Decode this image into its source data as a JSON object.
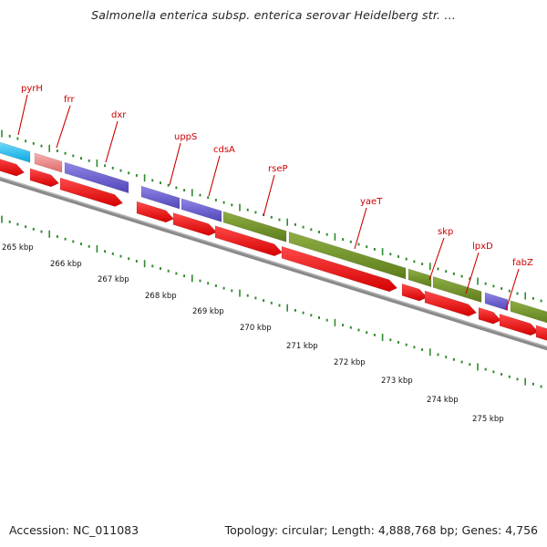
{
  "title": "Salmonella enterica subsp. enterica serovar Heidelberg str. ...",
  "accession": "Accession: NC_011083",
  "summary": "Topology: circular; Length: 4,888,768 bp; Genes: 4,756",
  "colors": {
    "backbone": "#7a7a7a",
    "gene_label": "#cc0000",
    "leader": "#cc0000",
    "tick_major": "#2e8b2e",
    "tick_minor": "#2e8b2e",
    "cds_arrow": "#ee0000",
    "feature_cyan": "#1ec0f0",
    "feature_pink": "#f08080",
    "feature_purple": "#6a5acd",
    "feature_olive": "#6b8e23"
  },
  "genes": [
    {
      "name": "pyrH"
    },
    {
      "name": "frr"
    },
    {
      "name": "dxr"
    },
    {
      "name": "uppS"
    },
    {
      "name": "cdsA"
    },
    {
      "name": "rseP"
    },
    {
      "name": "yaeT"
    },
    {
      "name": "skp"
    },
    {
      "name": "lpxD"
    },
    {
      "name": "fabZ"
    }
  ],
  "features": [
    {
      "type": "cyan"
    },
    {
      "type": "pink"
    },
    {
      "type": "purple"
    },
    {
      "type": "purple"
    },
    {
      "type": "purple"
    },
    {
      "type": "olive"
    },
    {
      "type": "olive"
    },
    {
      "type": "olive"
    },
    {
      "type": "olive"
    },
    {
      "type": "purple"
    },
    {
      "type": "olive"
    }
  ],
  "cds_arrows": [
    {
      "type": "cds"
    },
    {
      "type": "cds"
    },
    {
      "type": "cds"
    },
    {
      "type": "cds"
    },
    {
      "type": "cds"
    },
    {
      "type": "cds"
    },
    {
      "type": "cds"
    },
    {
      "type": "cds"
    },
    {
      "type": "cds"
    },
    {
      "type": "cds"
    },
    {
      "type": "cds"
    },
    {
      "type": "cds"
    }
  ],
  "kbp_labels": [
    "265 kbp",
    "266 kbp",
    "267 kbp",
    "268 kbp",
    "269 kbp",
    "270 kbp",
    "271 kbp",
    "272 kbp",
    "273 kbp",
    "274 kbp",
    "275 kbp"
  ]
}
